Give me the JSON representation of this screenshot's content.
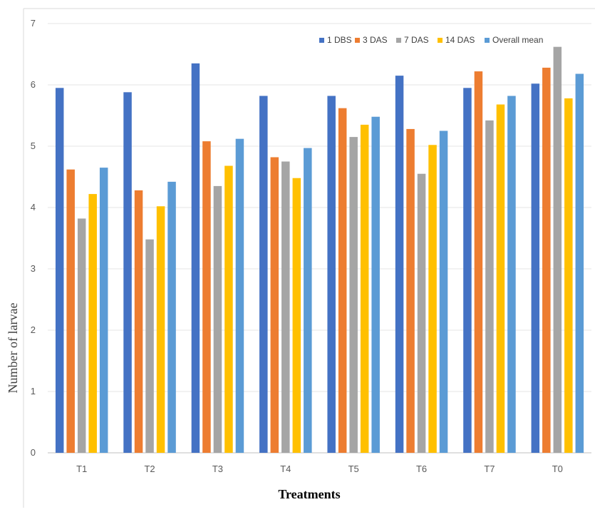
{
  "chart_data": {
    "type": "bar",
    "xlabel": "Treatments",
    "ylabel": "Number of larvae",
    "ylim": [
      0,
      7
    ],
    "yticks": [
      0,
      1,
      2,
      3,
      4,
      5,
      6,
      7
    ],
    "grid": true,
    "legend_position": "top-right",
    "categories": [
      "T1",
      "T2",
      "T3",
      "T4",
      "T5",
      "T6",
      "T7",
      "T0"
    ],
    "series": [
      {
        "name": "1 DBS",
        "color": "#4472C4",
        "values": [
          5.95,
          5.88,
          6.35,
          5.82,
          5.82,
          6.15,
          5.95,
          6.02
        ]
      },
      {
        "name": "3 DAS",
        "color": "#ED7D31",
        "values": [
          4.62,
          4.28,
          5.08,
          4.82,
          5.62,
          5.28,
          6.22,
          6.28
        ]
      },
      {
        "name": "7 DAS",
        "color": "#A5A5A5",
        "values": [
          3.82,
          3.48,
          4.35,
          4.75,
          5.15,
          4.55,
          5.42,
          6.62
        ]
      },
      {
        "name": "14 DAS",
        "color": "#FFC000",
        "values": [
          4.22,
          4.02,
          4.68,
          4.48,
          5.35,
          5.02,
          5.68,
          5.78
        ]
      },
      {
        "name": "Overall mean",
        "color": "#5B9BD5",
        "values": [
          4.65,
          4.42,
          5.12,
          4.97,
          5.48,
          5.25,
          5.82,
          6.18
        ]
      }
    ]
  }
}
